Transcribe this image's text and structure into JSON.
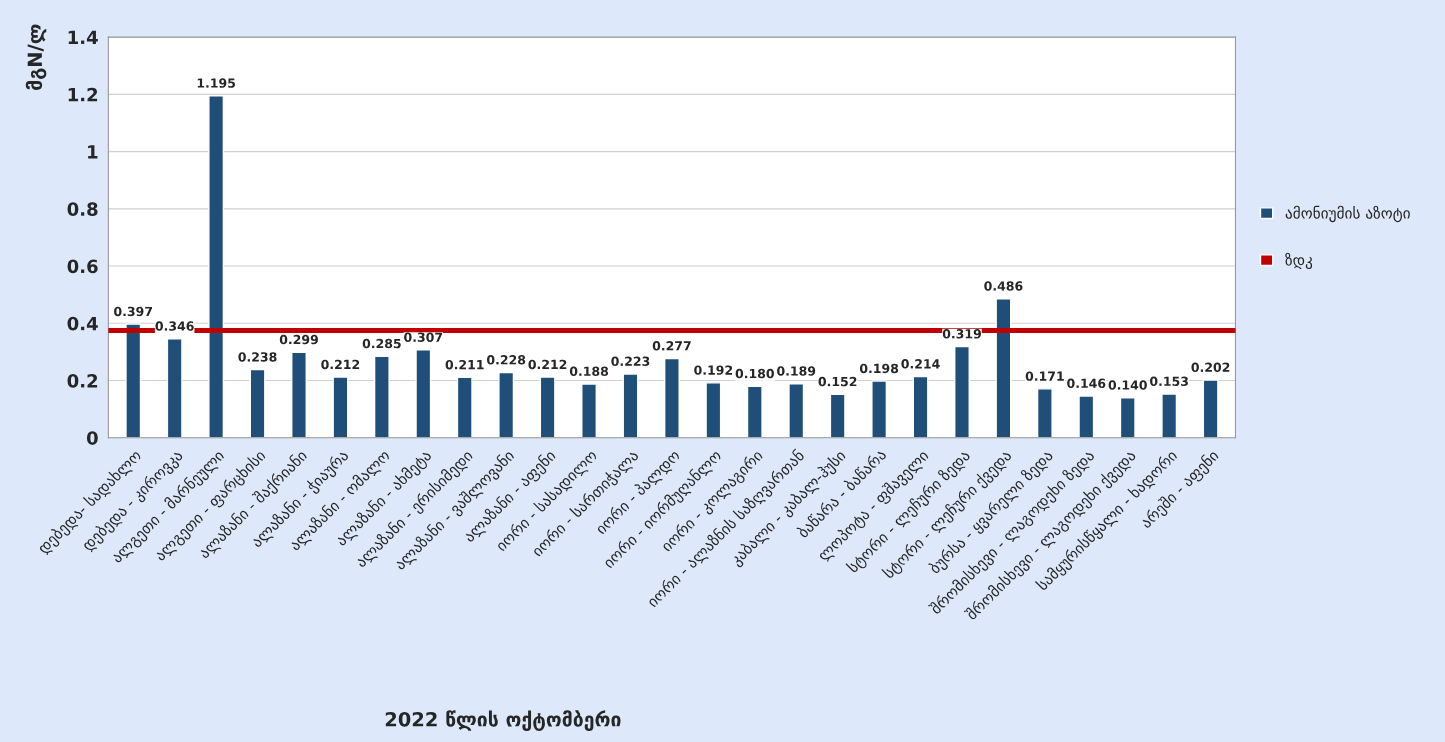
{
  "chart_data": {
    "type": "bar",
    "xlabel": "2022 წლის ოქტომბერი",
    "ylabel": "მგN/ლ",
    "categories": [
      "დებედა- სადახლო",
      "დებედა - კიროვკა",
      "ალგეთი - მარნეული",
      "ალგეთი - ფარცხისი",
      "ალაზანი - შაქრიანი",
      "ალაზანი - ჭიაურა",
      "ალაზანი - ომალო",
      "ალაზანი - ახმეტა",
      "ალაზანი - ერისიმედი",
      "ალაზანი - ვაშლოვანი",
      "ალაზანი - აფენი",
      "იორი - სასადილო",
      "იორი - სართიჭალა",
      "იორი - პალდო",
      "იორი - იორმუღანლო",
      "იორი - კოლაგირი",
      "იორი - ალაზნის საზღვართან",
      "კაბალი - კაბალ-ჰუსი",
      "ბაწარა - ბაწარა",
      "ლოპოტა - ფშაველი",
      "სტორი - ლეჩური ზედა",
      "სტორი - ლეჩური ქვედა",
      "ბურსა - ყვარელი ზედა",
      "შრომისხევი - ლაგოდეხი ზედა",
      "შრომისხევი - ლაგოდეხი ქვედა",
      "სამყურისწყალი - ხადორი",
      "არეში - აფენი"
    ],
    "series": [
      {
        "name": "ამონიუმის აზოტი",
        "color": "#1f4e79",
        "values": [
          0.397,
          0.346,
          1.195,
          0.238,
          0.299,
          0.212,
          0.285,
          0.307,
          0.211,
          0.228,
          0.212,
          0.188,
          0.223,
          0.277,
          0.192,
          0.18,
          0.189,
          0.152,
          0.198,
          0.214,
          0.319,
          0.486,
          0.171,
          0.146,
          0.14,
          0.153,
          0.202
        ],
        "value_labels": [
          "0.397",
          "0.346",
          "1.195",
          "0.238",
          "0.299",
          "0.212",
          "0.285",
          "0.307",
          "0.211",
          "0.228",
          "0.212",
          "0.188",
          "0.223",
          "0.277",
          "0.192",
          "0.180",
          "0.189",
          "0.152",
          "0.198",
          "0.214",
          "0.319",
          "0.486",
          "0.171",
          "0.146",
          "0.140",
          "0.153",
          "0.202"
        ]
      }
    ],
    "ref_lines": [
      {
        "axis": "y",
        "value": 0.375,
        "label": "ზდკ",
        "color": "#c00000"
      }
    ],
    "ylim": [
      0,
      1.4
    ],
    "yticks": [
      0,
      0.2,
      0.4,
      0.6,
      0.8,
      1,
      1.2,
      1.4
    ],
    "grid": "y",
    "legend": "right"
  }
}
